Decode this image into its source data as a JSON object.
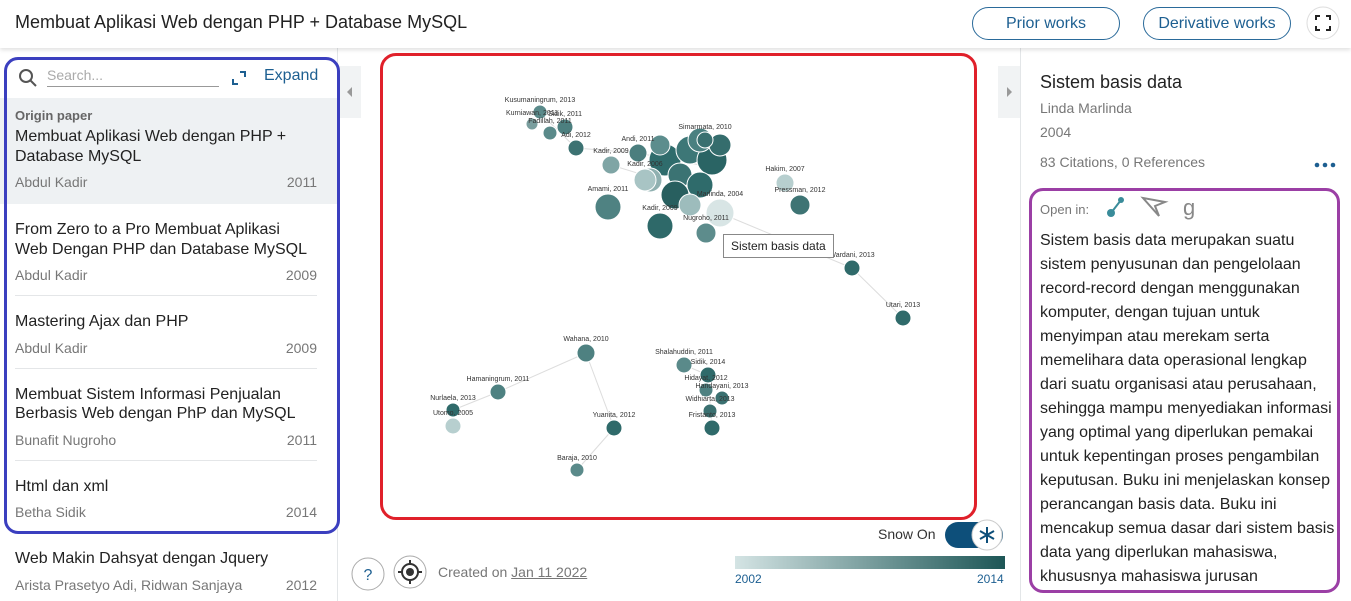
{
  "header": {
    "title": "Membuat Aplikasi Web dengan PHP + Database MySQL",
    "prior_button": "Prior works",
    "derivative_button": "Derivative works"
  },
  "left": {
    "search_placeholder": "Search...",
    "expand": "Expand",
    "origin_label": "Origin paper",
    "papers": [
      {
        "title": "Membuat Aplikasi Web dengan PHP + Database MySQL",
        "authors": "Abdul Kadir",
        "year": "2011"
      },
      {
        "title": "From Zero to a Pro Membuat Aplikasi Web Dengan PHP dan Database MySQL",
        "authors": "Abdul Kadir",
        "year": "2009"
      },
      {
        "title": "Mastering Ajax dan PHP",
        "authors": "Abdul Kadir",
        "year": "2009"
      },
      {
        "title": "Membuat Sistem Informasi Penjualan Berbasis Web dengan PhP dan MySQL",
        "authors": "Bunafit Nugroho",
        "year": "2011"
      },
      {
        "title": "Html dan xml",
        "authors": "Betha Sidik",
        "year": "2014"
      },
      {
        "title": "Web Makin Dahsyat dengan Jquery",
        "authors": "Arista Prasetyo Adi, Ridwan Sanjaya",
        "year": "2012"
      }
    ]
  },
  "graph": {
    "nodes": [
      "Kusumaningrum, 2013",
      "Kurniawan, 2011",
      "Sidik, 2011",
      "Fadillah, 2011",
      "Adi, 2012",
      "Andi, 2011",
      "Simarmata, 2010",
      "Kadir, 2009",
      "Kadir, 2006",
      "Hakim, 2007",
      "Amami, 2011",
      "Pressman, 2012",
      "Marlinda, 2004",
      "Nugroho, 2011",
      "Kadir, 2009",
      "Wardani, 2013",
      "Utari, 2013",
      "Wahana, 2010",
      "Shalahuddin, 2011",
      "Sidik, 2014",
      "Hidayat, 2012",
      "Handayani, 2013",
      "Hamaningrum, 2011",
      "Nurlaela, 2013",
      "Utomo, 2005",
      "Widhiarta, 2013",
      "Yuanita, 2012",
      "Fristanto, 2013",
      "Baraja, 2010"
    ],
    "tooltip": "Sistem basis data",
    "snow": "Snow On",
    "created_on": "Created on",
    "created_date": "Jan 11 2022",
    "legend_start": "2002",
    "legend_end": "2014"
  },
  "right": {
    "title": "Sistem basis data",
    "author": "Linda Marlinda",
    "year": "2004",
    "citations": "83 Citations, 0 References",
    "open_in": "Open in:",
    "abstract": "Sistem basis data merupakan suatu sistem penyusunan dan pengelolaan record-record dengan menggunakan komputer, dengan tujuan untuk menyimpan atau merekam serta memelihara data operasional lengkap dari suatu organisasi atau perusahaan, sehingga mampu menyediakan informasi yang optimal yang diperlukan pemakai untuk kepentingan proses pengambilan keputusan. Buku ini menjelaskan konsep perancangan basis data. Buku ini mencakup semua dasar dari sistem basis data yang diperlukan mahasiswa, khususnya mahasiswa jurusan Manajemen Informatika, Akuntansi"
  }
}
